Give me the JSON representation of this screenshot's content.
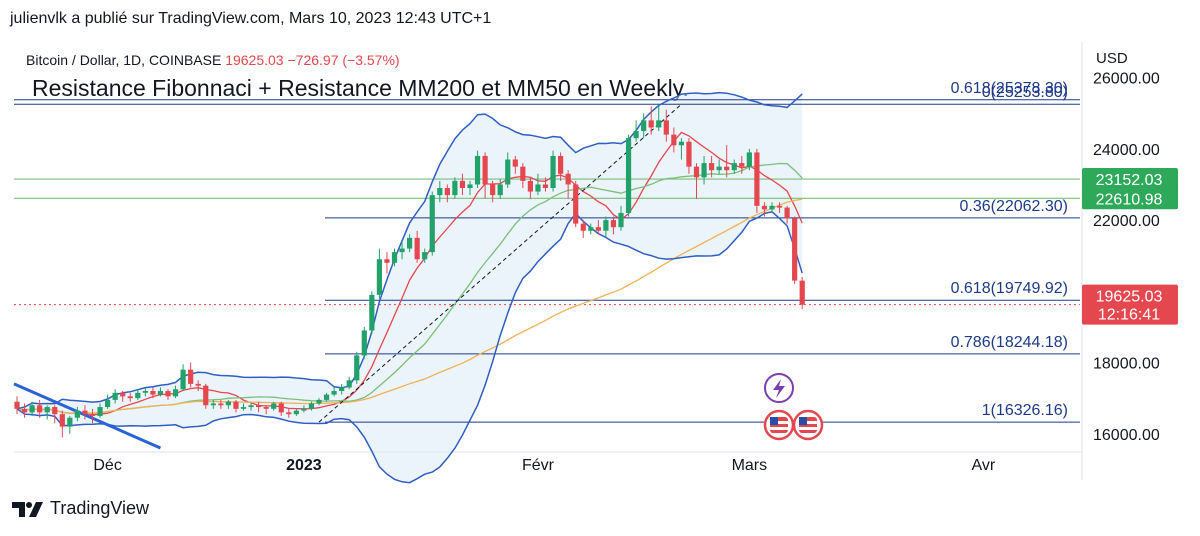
{
  "credit": "julienvlk a publié sur TradingView.com, Mars 10, 2023 12:43 UTC+1",
  "legend": {
    "symbol": "Bitcoin / Dollar, 1D, COINBASE",
    "price": "19625.03",
    "change": "−726.97 (−3.57%)"
  },
  "headline": "Resistance Fibonnaci + Resistance MM200 et MM50 en Weekly.",
  "axis_currency": "USD",
  "footer_brand": "TradingView",
  "colors": {
    "up": "#22a16a",
    "down": "#e5474f",
    "bollinger": "#2f5ec4",
    "ma_red": "#e5474f",
    "ma_green": "#7bbf7b",
    "ma_orange": "#f1b15a",
    "fib": "#1e3a8a",
    "badge_green": "#2ea95a",
    "badge_red": "#e5474f"
  },
  "icons": {
    "logo": "tradingview-logo-icon",
    "event": "lightning-icon",
    "flag": "us-flag-icon"
  },
  "chart_data": {
    "type": "candlestick",
    "y_ticks": [
      "26000.00",
      "24000.00",
      "22000.00",
      "20000.00",
      "18000.00",
      "16000.00"
    ],
    "y_tick_values": [
      26000,
      24000,
      22000,
      20000,
      18000,
      16000
    ],
    "ylim": [
      15600,
      27000
    ],
    "x_labels": [
      {
        "label": "Déc",
        "index": 12
      },
      {
        "label": "2023",
        "index": 38,
        "bold": true
      },
      {
        "label": "Févr",
        "index": 69
      },
      {
        "label": "Mars",
        "index": 97
      },
      {
        "label": "Avr",
        "index": 128
      }
    ],
    "fib_levels": [
      {
        "label": "0.618(25378.30)",
        "value": 25378.3
      },
      {
        "label": "0(25253.80)",
        "value": 25253.8
      },
      {
        "label": "0.36(22062.30)",
        "value": 22062.3
      },
      {
        "label": "0.618(19749.92)",
        "value": 19749.92
      },
      {
        "label": "0.786(18244.18)",
        "value": 18244.18
      },
      {
        "label": "1(16326.16)",
        "value": 16326.16
      }
    ],
    "moving_average_levels": [
      {
        "value": 23152.03,
        "label": "23152.03",
        "color": "#2ea95a"
      },
      {
        "value": 22610.98,
        "label": "22610.98",
        "color": "#2ea95a"
      }
    ],
    "last_price": {
      "value": 19625.03,
      "label": "19625.03",
      "countdown": "12:16:41"
    },
    "candles": [
      [
        16900,
        16700,
        17050,
        16550
      ],
      [
        16700,
        16600,
        16850,
        16450
      ],
      [
        16600,
        16800,
        16900,
        16500
      ],
      [
        16800,
        16600,
        16950,
        16450
      ],
      [
        16600,
        16750,
        16800,
        16400
      ],
      [
        16750,
        16550,
        16800,
        16300
      ],
      [
        16550,
        16200,
        16650,
        15900
      ],
      [
        16200,
        16450,
        16500,
        16000
      ],
      [
        16450,
        16650,
        16750,
        16350
      ],
      [
        16650,
        16550,
        16800,
        16400
      ],
      [
        16550,
        16500,
        16700,
        16300
      ],
      [
        16500,
        16750,
        16850,
        16450
      ],
      [
        16750,
        16950,
        17100,
        16700
      ],
      [
        16950,
        17150,
        17250,
        16850
      ],
      [
        17150,
        17050,
        17200,
        16900
      ],
      [
        17050,
        17000,
        17150,
        16900
      ],
      [
        17000,
        17150,
        17250,
        16950
      ],
      [
        17150,
        17200,
        17300,
        17050
      ],
      [
        17200,
        17100,
        17300,
        17000
      ],
      [
        17100,
        17200,
        17300,
        17050
      ],
      [
        17200,
        17050,
        17250,
        16950
      ],
      [
        17050,
        17250,
        17350,
        17000
      ],
      [
        17250,
        17800,
        17950,
        17200
      ],
      [
        17800,
        17400,
        18000,
        17300
      ],
      [
        17400,
        17350,
        17500,
        17200
      ],
      [
        17350,
        16800,
        17400,
        16700
      ],
      [
        16800,
        16850,
        16950,
        16700
      ],
      [
        16850,
        16800,
        16950,
        16700
      ],
      [
        16800,
        16900,
        16950,
        16700
      ],
      [
        16900,
        16700,
        16950,
        16600
      ],
      [
        16700,
        16750,
        16850,
        16650
      ],
      [
        16750,
        16800,
        16850,
        16650
      ],
      [
        16800,
        16750,
        16900,
        16600
      ],
      [
        16750,
        16700,
        16800,
        16550
      ],
      [
        16700,
        16850,
        16900,
        16650
      ],
      [
        16850,
        16600,
        16900,
        16500
      ],
      [
        16600,
        16550,
        16700,
        16450
      ],
      [
        16550,
        16650,
        16700,
        16500
      ],
      [
        16650,
        16700,
        16800,
        16600
      ],
      [
        16700,
        16850,
        16900,
        16650
      ],
      [
        16850,
        16950,
        17000,
        16800
      ],
      [
        16950,
        17100,
        17150,
        16900
      ],
      [
        17100,
        17200,
        17300,
        17050
      ],
      [
        17200,
        17300,
        17400,
        17100
      ],
      [
        17300,
        17500,
        17600,
        17250
      ],
      [
        17500,
        18200,
        18300,
        17400
      ],
      [
        18200,
        18900,
        19000,
        18100
      ],
      [
        18900,
        19900,
        20000,
        18800
      ],
      [
        19900,
        20900,
        21200,
        19800
      ],
      [
        20900,
        20800,
        21100,
        20500
      ],
      [
        20800,
        21100,
        21200,
        20700
      ],
      [
        21100,
        21200,
        21400,
        20900
      ],
      [
        21200,
        21500,
        21600,
        21100
      ],
      [
        21500,
        20900,
        21700,
        20800
      ],
      [
        20900,
        21100,
        21200,
        20800
      ],
      [
        21100,
        22700,
        22800,
        21000
      ],
      [
        22700,
        22900,
        23100,
        22500
      ],
      [
        22900,
        22700,
        23000,
        22500
      ],
      [
        22700,
        23100,
        23200,
        22600
      ],
      [
        23100,
        22900,
        23300,
        22700
      ],
      [
        22900,
        23000,
        23100,
        22700
      ],
      [
        23000,
        23800,
        23950,
        22900
      ],
      [
        23800,
        23000,
        23900,
        22600
      ],
      [
        23000,
        22700,
        23100,
        22500
      ],
      [
        22700,
        23000,
        23150,
        22600
      ],
      [
        23000,
        23700,
        23900,
        22900
      ],
      [
        23700,
        23500,
        23800,
        23300
      ],
      [
        23500,
        23100,
        23600,
        22900
      ],
      [
        23100,
        22800,
        23200,
        22600
      ],
      [
        22800,
        23000,
        23300,
        22700
      ],
      [
        23000,
        22900,
        23200,
        22800
      ],
      [
        22900,
        23800,
        23950,
        22800
      ],
      [
        23800,
        23300,
        23900,
        23100
      ],
      [
        23300,
        23000,
        23400,
        22600
      ],
      [
        23000,
        21900,
        23100,
        21800
      ],
      [
        21900,
        21700,
        22000,
        21500
      ],
      [
        21700,
        21800,
        21900,
        21600
      ],
      [
        21800,
        21700,
        22000,
        21600
      ],
      [
        21700,
        22000,
        22100,
        21500
      ],
      [
        22000,
        21800,
        22100,
        21600
      ],
      [
        21800,
        22200,
        22400,
        21700
      ],
      [
        22200,
        24300,
        24400,
        22100
      ],
      [
        24300,
        24500,
        24800,
        24200
      ],
      [
        24500,
        24800,
        25000,
        24300
      ],
      [
        24800,
        24600,
        25200,
        24400
      ],
      [
        24600,
        24800,
        25250,
        24500
      ],
      [
        24800,
        24400,
        25100,
        24200
      ],
      [
        24400,
        24100,
        24600,
        23900
      ],
      [
        24100,
        24200,
        24300,
        23700
      ],
      [
        24200,
        23500,
        24300,
        23300
      ],
      [
        23500,
        23200,
        23600,
        22600
      ],
      [
        23200,
        23600,
        23800,
        23000
      ],
      [
        23600,
        23400,
        23800,
        23200
      ],
      [
        23400,
        23500,
        23700,
        23300
      ],
      [
        23500,
        23400,
        24100,
        23200
      ],
      [
        23400,
        23600,
        23700,
        23300
      ],
      [
        23600,
        23500,
        23800,
        23300
      ],
      [
        23500,
        23900,
        24000,
        23400
      ],
      [
        23900,
        22400,
        24000,
        22200
      ],
      [
        22400,
        22300,
        22500,
        22100
      ],
      [
        22300,
        22400,
        22500,
        22200
      ],
      [
        22400,
        22350,
        22500,
        22200
      ],
      [
        22350,
        22050,
        22400,
        21900
      ],
      [
        22050,
        20300,
        22100,
        20200
      ],
      [
        20300,
        19625,
        20400,
        19500
      ]
    ]
  }
}
